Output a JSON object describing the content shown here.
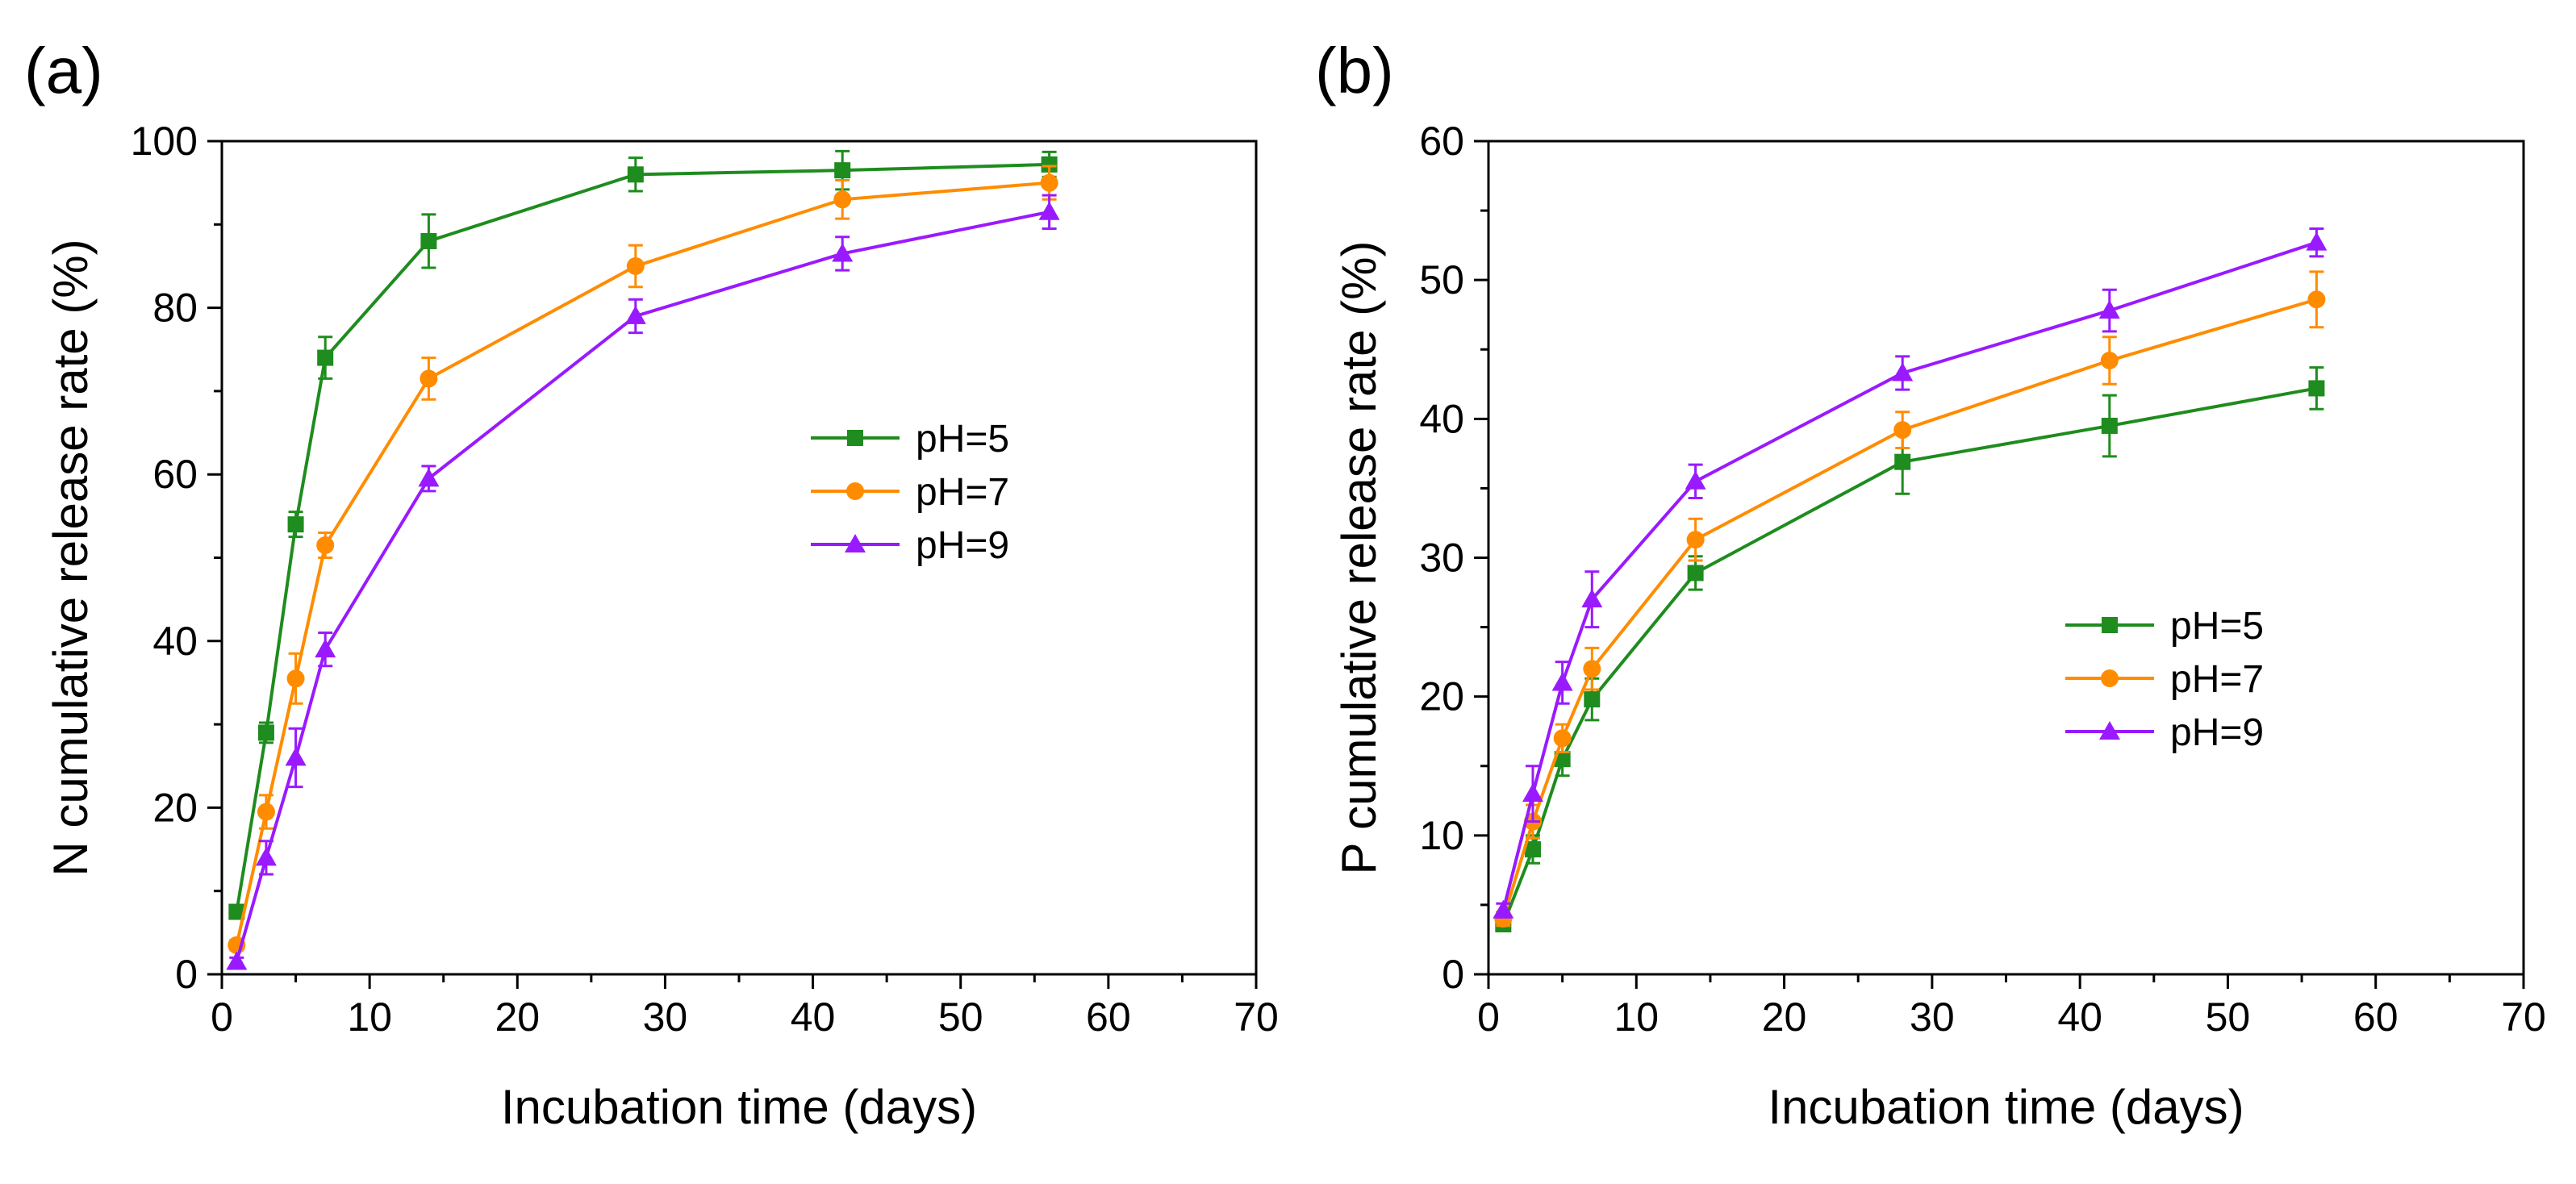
{
  "chart_data": [
    {
      "panel_label": "(a)",
      "type": "line",
      "xlabel": "Incubation time (days)",
      "ylabel": "N cumulative release rate (%)",
      "xlim": [
        0,
        70
      ],
      "ylim": [
        0,
        100
      ],
      "x_ticks": [
        "0",
        "10",
        "20",
        "30",
        "40",
        "50",
        "60",
        "70"
      ],
      "y_ticks": [
        "0",
        "20",
        "40",
        "60",
        "80",
        "100"
      ],
      "legend_position": "center-right",
      "x": [
        1,
        3,
        5,
        7,
        14,
        28,
        42,
        56
      ],
      "series": [
        {
          "name": "pH=5",
          "color": "#1e8c1e",
          "marker": "square",
          "values": [
            7.5,
            29,
            54,
            74,
            88,
            96,
            96.5,
            97.2
          ],
          "errors": [
            0.8,
            1.2,
            1.5,
            2.5,
            3.2,
            2.0,
            2.3,
            1.5
          ]
        },
        {
          "name": "pH=7",
          "color": "#ff8c00",
          "marker": "circle",
          "values": [
            3.5,
            19.5,
            35.5,
            51.5,
            71.5,
            85,
            93,
            95
          ],
          "errors": [
            0.6,
            2.0,
            3.0,
            1.5,
            2.5,
            2.5,
            2.3,
            2.0
          ]
        },
        {
          "name": "pH=9",
          "color": "#9a1aff",
          "marker": "triangle",
          "values": [
            1.5,
            14,
            26,
            39,
            59.5,
            79,
            86.5,
            91.5
          ],
          "errors": [
            0.5,
            2.0,
            3.5,
            2.0,
            1.5,
            2.0,
            2.0,
            2.0
          ]
        }
      ]
    },
    {
      "panel_label": "(b)",
      "type": "line",
      "xlabel": "Incubation time (days)",
      "ylabel": "P cumulative release rate (%)",
      "xlim": [
        0,
        70
      ],
      "ylim": [
        0,
        60
      ],
      "x_ticks": [
        "0",
        "10",
        "20",
        "30",
        "40",
        "50",
        "60",
        "70"
      ],
      "y_ticks": [
        "0",
        "10",
        "20",
        "30",
        "40",
        "50",
        "60"
      ],
      "legend_position": "lower-right",
      "x": [
        1,
        3,
        5,
        7,
        14,
        28,
        42,
        56
      ],
      "series": [
        {
          "name": "pH=5",
          "color": "#1e8c1e",
          "marker": "square",
          "values": [
            3.6,
            9,
            15.5,
            19.8,
            28.9,
            36.9,
            39.5,
            42.2
          ],
          "errors": [
            0.4,
            1.0,
            1.2,
            1.5,
            1.2,
            2.3,
            2.2,
            1.5
          ]
        },
        {
          "name": "pH=7",
          "color": "#ff8c00",
          "marker": "circle",
          "values": [
            4.0,
            11,
            17,
            22,
            31.3,
            39.2,
            44.2,
            48.6
          ],
          "errors": [
            0.5,
            1.2,
            1.0,
            1.5,
            1.5,
            1.3,
            1.7,
            2.0
          ]
        },
        {
          "name": "pH=9",
          "color": "#9a1aff",
          "marker": "triangle",
          "values": [
            4.6,
            13,
            21,
            27,
            35.5,
            43.3,
            47.8,
            52.7
          ],
          "errors": [
            0.5,
            2.0,
            1.5,
            2.0,
            1.2,
            1.2,
            1.5,
            1.0
          ]
        }
      ]
    }
  ]
}
